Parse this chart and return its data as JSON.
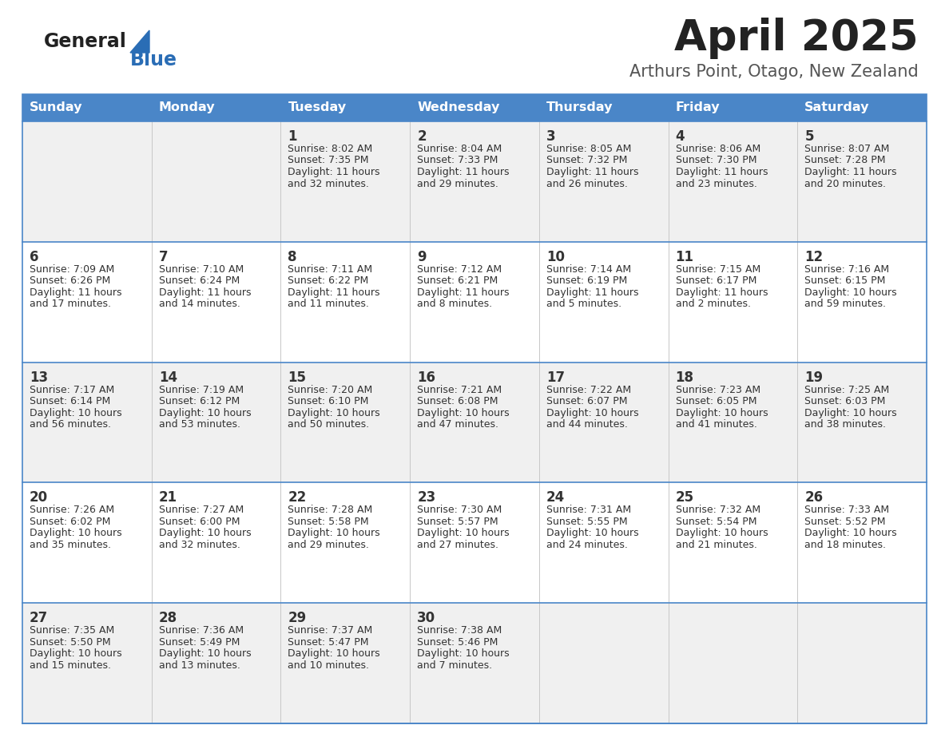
{
  "title": "April 2025",
  "subtitle": "Arthurs Point, Otago, New Zealand",
  "days_of_week": [
    "Sunday",
    "Monday",
    "Tuesday",
    "Wednesday",
    "Thursday",
    "Friday",
    "Saturday"
  ],
  "header_bg": "#4a86c8",
  "header_text": "#ffffff",
  "row_bg_odd": "#f0f0f0",
  "row_bg_even": "#ffffff",
  "separator_color": "#4a86c8",
  "day_number_color": "#333333",
  "cell_text_color": "#333333",
  "title_color": "#222222",
  "subtitle_color": "#555555",
  "logo_general_color": "#222222",
  "logo_blue_color": "#2a6db5",
  "calendar_data": [
    [
      {
        "day": null,
        "sunrise": null,
        "sunset": null,
        "daylight": null
      },
      {
        "day": null,
        "sunrise": null,
        "sunset": null,
        "daylight": null
      },
      {
        "day": 1,
        "sunrise": "8:02 AM",
        "sunset": "7:35 PM",
        "daylight": "11 hours and 32 minutes."
      },
      {
        "day": 2,
        "sunrise": "8:04 AM",
        "sunset": "7:33 PM",
        "daylight": "11 hours and 29 minutes."
      },
      {
        "day": 3,
        "sunrise": "8:05 AM",
        "sunset": "7:32 PM",
        "daylight": "11 hours and 26 minutes."
      },
      {
        "day": 4,
        "sunrise": "8:06 AM",
        "sunset": "7:30 PM",
        "daylight": "11 hours and 23 minutes."
      },
      {
        "day": 5,
        "sunrise": "8:07 AM",
        "sunset": "7:28 PM",
        "daylight": "11 hours and 20 minutes."
      }
    ],
    [
      {
        "day": 6,
        "sunrise": "7:09 AM",
        "sunset": "6:26 PM",
        "daylight": "11 hours and 17 minutes."
      },
      {
        "day": 7,
        "sunrise": "7:10 AM",
        "sunset": "6:24 PM",
        "daylight": "11 hours and 14 minutes."
      },
      {
        "day": 8,
        "sunrise": "7:11 AM",
        "sunset": "6:22 PM",
        "daylight": "11 hours and 11 minutes."
      },
      {
        "day": 9,
        "sunrise": "7:12 AM",
        "sunset": "6:21 PM",
        "daylight": "11 hours and 8 minutes."
      },
      {
        "day": 10,
        "sunrise": "7:14 AM",
        "sunset": "6:19 PM",
        "daylight": "11 hours and 5 minutes."
      },
      {
        "day": 11,
        "sunrise": "7:15 AM",
        "sunset": "6:17 PM",
        "daylight": "11 hours and 2 minutes."
      },
      {
        "day": 12,
        "sunrise": "7:16 AM",
        "sunset": "6:15 PM",
        "daylight": "10 hours and 59 minutes."
      }
    ],
    [
      {
        "day": 13,
        "sunrise": "7:17 AM",
        "sunset": "6:14 PM",
        "daylight": "10 hours and 56 minutes."
      },
      {
        "day": 14,
        "sunrise": "7:19 AM",
        "sunset": "6:12 PM",
        "daylight": "10 hours and 53 minutes."
      },
      {
        "day": 15,
        "sunrise": "7:20 AM",
        "sunset": "6:10 PM",
        "daylight": "10 hours and 50 minutes."
      },
      {
        "day": 16,
        "sunrise": "7:21 AM",
        "sunset": "6:08 PM",
        "daylight": "10 hours and 47 minutes."
      },
      {
        "day": 17,
        "sunrise": "7:22 AM",
        "sunset": "6:07 PM",
        "daylight": "10 hours and 44 minutes."
      },
      {
        "day": 18,
        "sunrise": "7:23 AM",
        "sunset": "6:05 PM",
        "daylight": "10 hours and 41 minutes."
      },
      {
        "day": 19,
        "sunrise": "7:25 AM",
        "sunset": "6:03 PM",
        "daylight": "10 hours and 38 minutes."
      }
    ],
    [
      {
        "day": 20,
        "sunrise": "7:26 AM",
        "sunset": "6:02 PM",
        "daylight": "10 hours and 35 minutes."
      },
      {
        "day": 21,
        "sunrise": "7:27 AM",
        "sunset": "6:00 PM",
        "daylight": "10 hours and 32 minutes."
      },
      {
        "day": 22,
        "sunrise": "7:28 AM",
        "sunset": "5:58 PM",
        "daylight": "10 hours and 29 minutes."
      },
      {
        "day": 23,
        "sunrise": "7:30 AM",
        "sunset": "5:57 PM",
        "daylight": "10 hours and 27 minutes."
      },
      {
        "day": 24,
        "sunrise": "7:31 AM",
        "sunset": "5:55 PM",
        "daylight": "10 hours and 24 minutes."
      },
      {
        "day": 25,
        "sunrise": "7:32 AM",
        "sunset": "5:54 PM",
        "daylight": "10 hours and 21 minutes."
      },
      {
        "day": 26,
        "sunrise": "7:33 AM",
        "sunset": "5:52 PM",
        "daylight": "10 hours and 18 minutes."
      }
    ],
    [
      {
        "day": 27,
        "sunrise": "7:35 AM",
        "sunset": "5:50 PM",
        "daylight": "10 hours and 15 minutes."
      },
      {
        "day": 28,
        "sunrise": "7:36 AM",
        "sunset": "5:49 PM",
        "daylight": "10 hours and 13 minutes."
      },
      {
        "day": 29,
        "sunrise": "7:37 AM",
        "sunset": "5:47 PM",
        "daylight": "10 hours and 10 minutes."
      },
      {
        "day": 30,
        "sunrise": "7:38 AM",
        "sunset": "5:46 PM",
        "daylight": "10 hours and 7 minutes."
      },
      {
        "day": null,
        "sunrise": null,
        "sunset": null,
        "daylight": null
      },
      {
        "day": null,
        "sunrise": null,
        "sunset": null,
        "daylight": null
      },
      {
        "day": null,
        "sunrise": null,
        "sunset": null,
        "daylight": null
      }
    ]
  ]
}
